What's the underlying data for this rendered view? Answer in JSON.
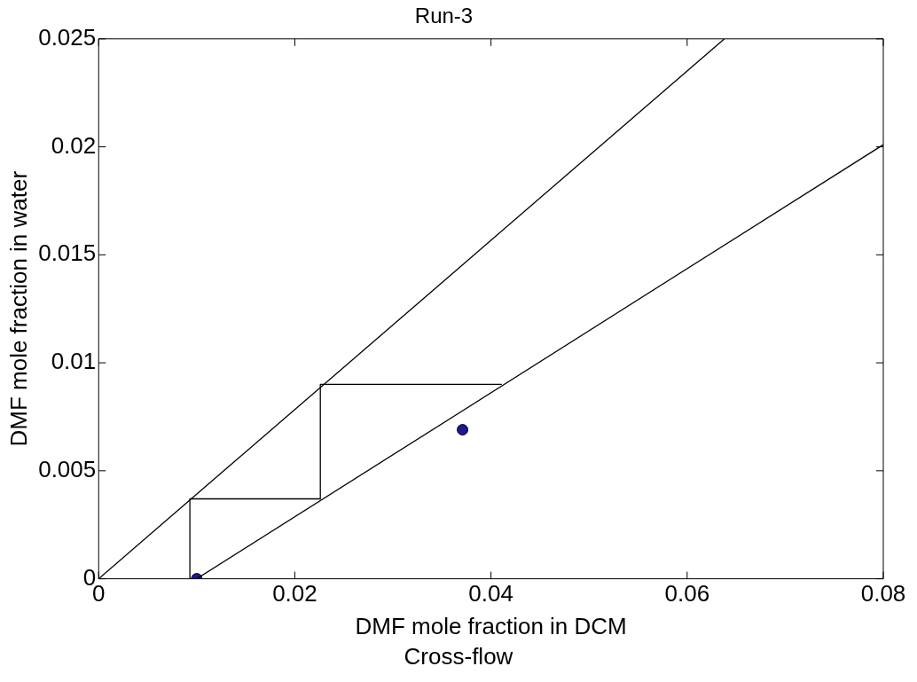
{
  "chart_data": {
    "type": "line",
    "title": "Run-3",
    "xlabel": "DMF mole fraction in DCM",
    "ylabel": "DMF mole fraction in water",
    "annotations": [
      "Cross-flow"
    ],
    "xlim": [
      0,
      0.08
    ],
    "ylim": [
      0,
      0.025
    ],
    "xticks": [
      0,
      0.02,
      0.04,
      0.06,
      0.08
    ],
    "yticks": [
      0,
      0.005,
      0.01,
      0.015,
      0.02,
      0.025
    ],
    "grid": false,
    "legend": false,
    "marker": "none",
    "line_style": "solid",
    "series": [
      {
        "type": "line",
        "color": "#000000",
        "x": [
          0,
          0.0638
        ],
        "values": [
          0,
          0.025
        ]
      },
      {
        "type": "line",
        "color": "#000000",
        "x": [
          0.01,
          0.08
        ],
        "values": [
          0,
          0.0201
        ]
      },
      {
        "type": "line",
        "color": "#000000",
        "x": [
          0.0093,
          0.0093,
          0.0226,
          0.0226,
          0.0411
        ],
        "values": [
          0,
          0.0037,
          0.0037,
          0.009,
          0.009
        ]
      },
      {
        "type": "scatter",
        "color": "#1a1a8c",
        "marker": "circle",
        "x": [
          0.01,
          0.0371
        ],
        "values": [
          0,
          0.0069
        ]
      }
    ]
  }
}
